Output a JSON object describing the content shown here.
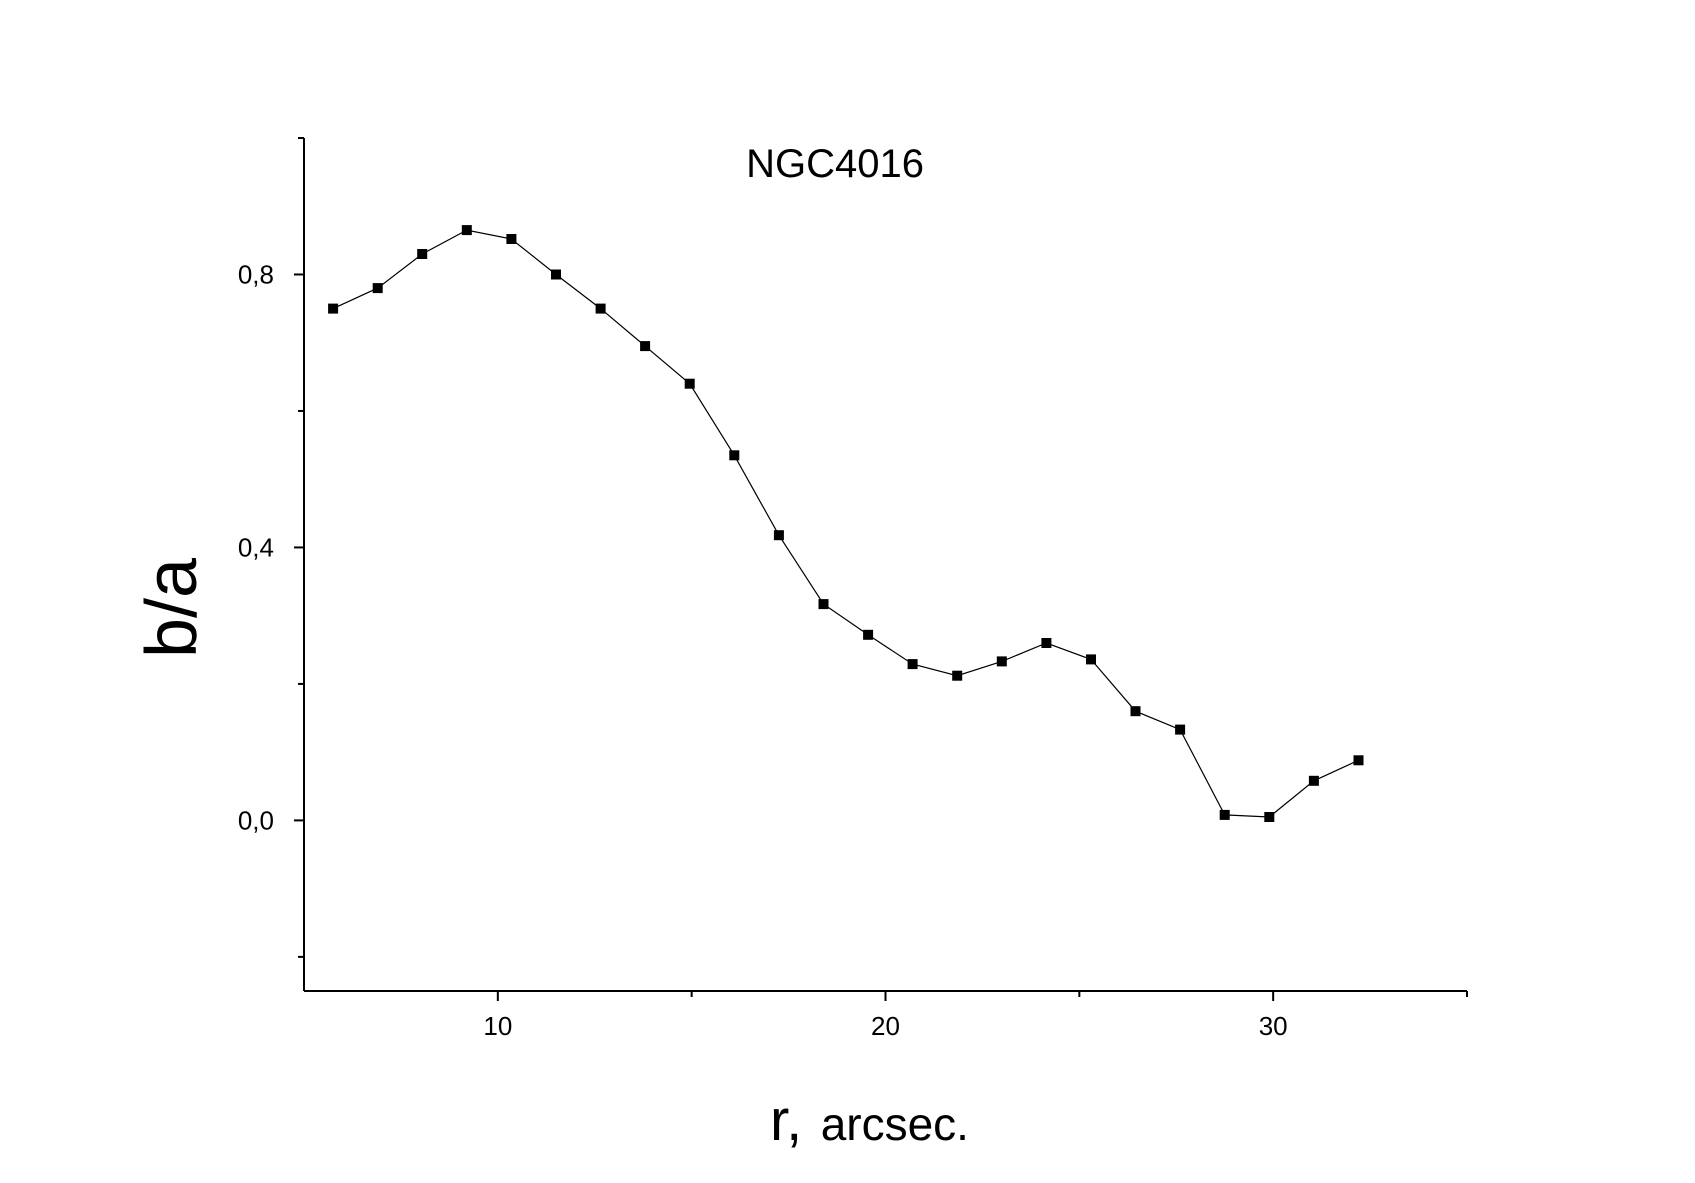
{
  "chart_data": {
    "type": "line",
    "title": "NGC4016",
    "xlabel": {
      "symbol": "r,",
      "unit": "arcsec."
    },
    "ylabel": "b/a",
    "xlim": [
      5,
      35
    ],
    "ylim": [
      -0.25,
      1.0
    ],
    "x_ticks": [
      {
        "value": 10,
        "label": "10"
      },
      {
        "value": 20,
        "label": "20"
      },
      {
        "value": 30,
        "label": "30"
      }
    ],
    "x_minor_ticks": [
      15,
      25,
      35
    ],
    "y_ticks": [
      {
        "value": 0.8,
        "label": "0,8"
      },
      {
        "value": 0.4,
        "label": "0,4"
      },
      {
        "value": 0.0,
        "label": "0,0"
      }
    ],
    "y_minor_ticks": [
      1.0,
      0.6,
      0.2,
      -0.2
    ],
    "grid": false,
    "legend": "none",
    "series": [
      {
        "color": "#000000",
        "marker": "square",
        "x": [
          5.75,
          6.9,
          8.05,
          9.2,
          10.35,
          11.5,
          12.65,
          13.8,
          14.95,
          16.1,
          17.25,
          18.4,
          19.55,
          20.7,
          21.85,
          23.0,
          24.15,
          25.3,
          26.45,
          27.6,
          28.75,
          29.9,
          31.05,
          32.2
        ],
        "y": [
          0.75,
          0.78,
          0.83,
          0.865,
          0.852,
          0.8,
          0.75,
          0.695,
          0.64,
          0.535,
          0.418,
          0.317,
          0.272,
          0.229,
          0.212,
          0.233,
          0.26,
          0.236,
          0.16,
          0.133,
          0.008,
          0.005,
          0.058,
          0.088
        ]
      }
    ]
  }
}
